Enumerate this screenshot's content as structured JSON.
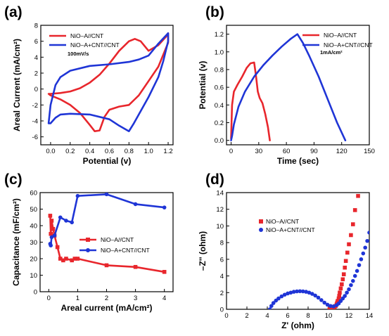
{
  "chart_data": [
    {
      "panel": "(a)",
      "type": "line",
      "xlabel": "Potential (v)",
      "ylabel": "Areal Current (mA/cm²)",
      "xlim": [
        -0.1,
        1.25
      ],
      "ylim": [
        -7,
        8
      ],
      "xticks": [
        0.0,
        0.2,
        0.4,
        0.6,
        0.8,
        1.0,
        1.2
      ],
      "xtick_labels": [
        "0.0",
        "0.2",
        "0.4",
        "0.6",
        "0.8",
        "1.0",
        "1.2"
      ],
      "yticks": [
        -6,
        -4,
        -2,
        0,
        2,
        4,
        6,
        8
      ],
      "ytick_labels": [
        "-6",
        "-4",
        "-2",
        "0",
        "2",
        "4",
        "6",
        "8"
      ],
      "legend_position": "top-left",
      "annotation": "100mV/s",
      "series": [
        {
          "name": "NiO–A//CNT",
          "color": "#e8262c",
          "closed": true,
          "x": [
            0.0,
            0.1,
            0.2,
            0.3,
            0.4,
            0.5,
            0.6,
            0.7,
            0.8,
            0.86,
            0.92,
            1.0,
            1.1,
            1.18,
            1.2,
            1.2,
            1.1,
            1.0,
            0.9,
            0.85,
            0.8,
            0.7,
            0.6,
            0.55,
            0.5,
            0.45,
            0.4,
            0.3,
            0.2,
            0.1,
            0.0,
            -0.02
          ],
          "y": [
            -0.6,
            -0.5,
            -0.3,
            0.1,
            0.8,
            1.8,
            3.2,
            4.8,
            6.0,
            6.3,
            6.0,
            4.8,
            5.5,
            6.6,
            7.0,
            5.8,
            2.8,
            1.0,
            -0.8,
            -1.4,
            -2.0,
            -2.2,
            -2.6,
            -3.5,
            -5.2,
            -5.3,
            -4.5,
            -3.0,
            -2.0,
            -1.3,
            -0.8,
            -0.6
          ]
        },
        {
          "name": "NiO–A+CNT//CNT",
          "color": "#1f35d6",
          "closed": true,
          "x": [
            -0.02,
            0.0,
            0.05,
            0.1,
            0.2,
            0.4,
            0.6,
            0.8,
            0.9,
            1.0,
            1.1,
            1.2,
            1.2,
            1.15,
            1.1,
            1.0,
            0.9,
            0.85,
            0.8,
            0.7,
            0.6,
            0.4,
            0.2,
            0.1,
            0.05,
            0.0,
            -0.02
          ],
          "y": [
            -4.3,
            -2.0,
            0.5,
            1.5,
            2.3,
            2.9,
            3.1,
            3.4,
            3.7,
            4.2,
            5.7,
            7.0,
            6.0,
            3.5,
            1.5,
            -1.0,
            -3.2,
            -4.3,
            -5.3,
            -4.6,
            -3.8,
            -3.2,
            -3.1,
            -3.2,
            -3.6,
            -4.3,
            -4.3
          ]
        }
      ]
    },
    {
      "panel": "(b)",
      "type": "line",
      "xlabel": "Time (sec)",
      "ylabel": "Potential (v)",
      "xlim": [
        -5,
        150
      ],
      "ylim": [
        -0.05,
        1.3
      ],
      "xticks": [
        0,
        30,
        60,
        90,
        120,
        150
      ],
      "xtick_labels": [
        "0",
        "30",
        "60",
        "90",
        "120",
        "150"
      ],
      "yticks": [
        0.0,
        0.2,
        0.4,
        0.6,
        0.8,
        1.0,
        1.2
      ],
      "ytick_labels": [
        "0.0",
        "0.2",
        "0.4",
        "0.6",
        "0.8",
        "1.0",
        "1.2"
      ],
      "legend_position": "top-right",
      "annotation": "1mA/cm²",
      "series": [
        {
          "name": "NiO–A//CNT",
          "color": "#e8262c",
          "x": [
            0,
            1,
            3,
            7,
            12,
            17,
            21,
            25,
            27,
            29,
            31,
            34,
            37,
            40,
            42
          ],
          "y": [
            0.02,
            0.4,
            0.55,
            0.63,
            0.72,
            0.82,
            0.87,
            0.88,
            0.73,
            0.55,
            0.48,
            0.42,
            0.3,
            0.15,
            0.0
          ]
        },
        {
          "name": "NiO–A+CNT//CNT",
          "color": "#1f35d6",
          "x": [
            0,
            1,
            3,
            8,
            15,
            25,
            35,
            45,
            55,
            65,
            72,
            78,
            85,
            95,
            105,
            115,
            124
          ],
          "y": [
            0.0,
            0.05,
            0.18,
            0.38,
            0.55,
            0.72,
            0.85,
            0.96,
            1.06,
            1.15,
            1.2,
            1.1,
            0.95,
            0.72,
            0.46,
            0.2,
            0.0
          ]
        }
      ]
    },
    {
      "panel": "(c)",
      "type": "line",
      "xlabel": "Areal current (mA/cm²)",
      "ylabel": "Capacitance (mF/cm²)",
      "xlim": [
        -0.3,
        4.3
      ],
      "ylim": [
        0,
        60
      ],
      "xticks": [
        0,
        1,
        2,
        3,
        4
      ],
      "xtick_labels": [
        "0",
        "1",
        "2",
        "3",
        "4"
      ],
      "yticks": [
        0,
        10,
        20,
        30,
        40,
        50,
        60
      ],
      "ytick_labels": [
        "0",
        "10",
        "20",
        "30",
        "40",
        "50",
        "60"
      ],
      "legend_position": "center-right",
      "series": [
        {
          "name": "NiO–A//CNT",
          "color": "#e8262c",
          "marker": "square",
          "x": [
            0.05,
            0.07,
            0.1,
            0.15,
            0.2,
            0.3,
            0.4,
            0.5,
            0.6,
            0.8,
            0.9,
            1.0,
            2.0,
            3.0,
            4.0
          ],
          "y": [
            46,
            35,
            43,
            38,
            34,
            27,
            20,
            19,
            20,
            19,
            20,
            20,
            16,
            15,
            12
          ]
        },
        {
          "name": "NiO–A+CNT//CNT",
          "color": "#1f35d6",
          "marker": "circle",
          "x": [
            0.05,
            0.07,
            0.1,
            0.2,
            0.4,
            0.6,
            0.8,
            1.0,
            2.0,
            3.0,
            4.0
          ],
          "y": [
            29,
            28,
            33,
            34,
            45,
            43,
            42,
            58,
            59,
            53,
            51
          ]
        }
      ]
    },
    {
      "panel": "(d)",
      "type": "scatter",
      "xlabel": "Z' (ohm)",
      "ylabel": "–Z'' (ohm)",
      "xlim": [
        0,
        14
      ],
      "ylim": [
        0,
        14
      ],
      "xticks": [
        0,
        2,
        4,
        6,
        8,
        10,
        12,
        14
      ],
      "xtick_labels": [
        "0",
        "2",
        "4",
        "6",
        "8",
        "10",
        "12",
        "14"
      ],
      "yticks": [
        0,
        2,
        4,
        6,
        8,
        10,
        12,
        14
      ],
      "ytick_labels": [
        "0",
        "2",
        "4",
        "6",
        "8",
        "10",
        "12",
        "14"
      ],
      "legend_position": "upper-left",
      "series": [
        {
          "name": "NiO–A//CNT",
          "color": "#e8262c",
          "marker": "square",
          "x": [
            10.1,
            10.3,
            10.5,
            10.6,
            10.7,
            10.8,
            10.85,
            10.9,
            11.0,
            11.05,
            11.1,
            11.2,
            11.3,
            11.4,
            11.5,
            11.6,
            11.7,
            11.85,
            12.0,
            12.2,
            12.4,
            12.6,
            12.9
          ],
          "y": [
            0.0,
            0.1,
            0.2,
            0.3,
            0.4,
            0.6,
            0.8,
            1.0,
            1.3,
            1.6,
            2.0,
            2.5,
            3.0,
            3.6,
            4.2,
            5.0,
            5.8,
            6.8,
            7.8,
            8.9,
            10.2,
            11.9,
            13.6
          ]
        },
        {
          "name": "NiO–A+CNT//CNT",
          "color": "#1f35d6",
          "marker": "circle",
          "x": [
            4.25,
            4.4,
            4.6,
            4.85,
            5.1,
            5.4,
            5.7,
            6.0,
            6.3,
            6.6,
            6.9,
            7.2,
            7.5,
            7.8,
            8.1,
            8.4,
            8.7,
            9.0,
            9.3,
            9.6,
            9.9,
            10.2,
            10.5,
            10.8,
            11.0,
            11.2,
            11.4,
            11.6,
            11.8,
            12.0,
            12.2,
            12.4,
            12.6,
            12.8,
            13.0,
            13.2,
            13.4,
            13.6,
            13.8,
            14.0
          ],
          "y": [
            0.0,
            0.4,
            0.75,
            1.05,
            1.3,
            1.55,
            1.75,
            1.9,
            2.0,
            2.1,
            2.15,
            2.17,
            2.15,
            2.1,
            2.0,
            1.85,
            1.65,
            1.4,
            1.1,
            0.8,
            0.55,
            0.4,
            0.35,
            0.5,
            0.7,
            1.0,
            1.3,
            1.6,
            2.0,
            2.4,
            2.9,
            3.4,
            4.0,
            4.6,
            5.3,
            6.0,
            6.7,
            7.4,
            8.2,
            9.2
          ]
        }
      ]
    }
  ]
}
